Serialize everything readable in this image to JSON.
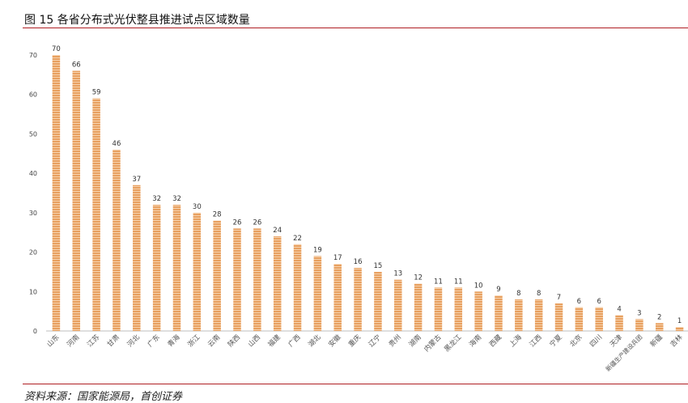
{
  "figure": {
    "title": "图 15 各省分布式光伏整县推进试点区域数量",
    "source": "资料来源：国家能源局，首创证券"
  },
  "chart_data": {
    "type": "bar",
    "title": "",
    "xlabel": "",
    "ylabel": "",
    "ylim": [
      0,
      70
    ],
    "yticks": [
      0,
      10,
      20,
      30,
      40,
      50,
      60,
      70
    ],
    "grid": false,
    "legend": "none",
    "bar_color": "#e8a060",
    "bar_stripe_color": "#f6d2ad",
    "categories": [
      "山东",
      "河南",
      "江苏",
      "甘肃",
      "河北",
      "广东",
      "青海",
      "浙江",
      "云南",
      "陕西",
      "山西",
      "福建",
      "广西",
      "湖北",
      "安徽",
      "重庆",
      "辽宁",
      "贵州",
      "湖南",
      "内蒙古",
      "黑龙江",
      "海南",
      "西藏",
      "上海",
      "江西",
      "宁夏",
      "北京",
      "四川",
      "天津",
      "新疆生产建设兵团",
      "新疆",
      "吉林"
    ],
    "values": [
      70,
      66,
      59,
      46,
      37,
      32,
      32,
      30,
      28,
      26,
      26,
      24,
      22,
      19,
      17,
      16,
      15,
      13,
      12,
      11,
      11,
      10,
      9,
      8,
      8,
      7,
      6,
      6,
      4,
      3,
      2,
      1
    ]
  }
}
